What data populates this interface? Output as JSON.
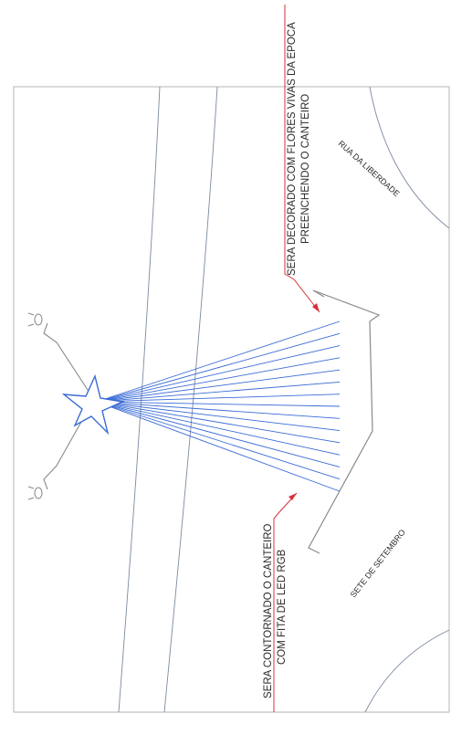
{
  "annotations": {
    "top_line1": "SERA DECORADO COM FLORES VIVAS DA EPOCA",
    "top_line2": "PREENCHENDO O CANTEIRO",
    "bottom_line1": "SERA CONTORNADO O CANTEIRO",
    "bottom_line2": "COM FITA DE LED RGB"
  },
  "streets": {
    "top": "RUA DA LIBERDADE",
    "bottom": "SETE DE SETEMBRO"
  },
  "colors": {
    "frame": "#8a8a8a",
    "light_rays": "#3a6bd6",
    "leader": "#d6303a",
    "text": "#2a2a2a",
    "street_line": "#7c8aa0"
  },
  "icons": {
    "star": "star-icon",
    "lamp": "lamp-icon"
  },
  "light_ray_count": 15
}
